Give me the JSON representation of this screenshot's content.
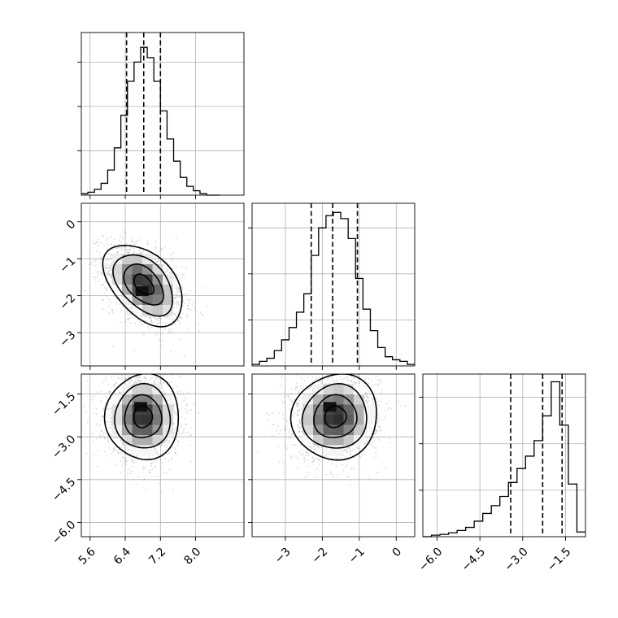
{
  "chart_data": {
    "type": "corner",
    "style": {
      "grid": true,
      "line_color": "#000000",
      "scatter_color": "#8c8c8c",
      "grid_color": "#b0b0b0"
    },
    "parameters": [
      {
        "range": [
          5.4,
          9.1
        ],
        "ticks": [
          5.6,
          6.4,
          7.2,
          8.0
        ],
        "tick_labels": [
          "5.6",
          "6.4",
          "7.2",
          "8.0"
        ],
        "quantiles": [
          6.43,
          6.82,
          7.2
        ],
        "hist": {
          "edges": [
            5.4,
            5.55,
            5.7,
            5.85,
            6.0,
            6.15,
            6.3,
            6.45,
            6.6,
            6.75,
            6.9,
            7.05,
            7.2,
            7.35,
            7.5,
            7.65,
            7.8,
            7.95,
            8.1,
            8.25,
            8.4,
            8.55
          ],
          "counts": [
            0.01,
            0.02,
            0.04,
            0.08,
            0.17,
            0.32,
            0.54,
            0.77,
            0.9,
            1.0,
            0.93,
            0.77,
            0.57,
            0.38,
            0.23,
            0.12,
            0.06,
            0.03,
            0.01,
            0.0,
            0.0
          ]
        },
        "hist_ticks": [
          0.3,
          0.6,
          0.9
        ],
        "hist_max": 1.1
      },
      {
        "range": [
          -3.9,
          0.5
        ],
        "ticks": [
          -3,
          -2,
          -1,
          0
        ],
        "tick_labels": [
          "−3",
          "−2",
          "−1",
          "0"
        ],
        "quantiles": [
          -2.3,
          -1.72,
          -1.05
        ],
        "hist": {
          "edges": [
            -3.9,
            -3.7,
            -3.5,
            -3.3,
            -3.1,
            -2.9,
            -2.7,
            -2.5,
            -2.3,
            -2.1,
            -1.9,
            -1.7,
            -1.5,
            -1.3,
            -1.1,
            -0.9,
            -0.7,
            -0.5,
            -0.3,
            -0.1,
            0.1,
            0.3,
            0.5
          ],
          "counts": [
            0.01,
            0.03,
            0.05,
            0.1,
            0.17,
            0.25,
            0.35,
            0.47,
            0.72,
            0.9,
            0.98,
            1.0,
            0.96,
            0.83,
            0.57,
            0.37,
            0.23,
            0.12,
            0.06,
            0.04,
            0.03,
            0.01
          ]
        },
        "hist_ticks": [
          0.3,
          0.6,
          0.9
        ],
        "hist_max": 1.06
      },
      {
        "range": [
          -6.5,
          -0.8
        ],
        "ticks": [
          -6.0,
          -4.5,
          -3.0,
          -1.5
        ],
        "tick_labels": [
          "−6.0",
          "−4.5",
          "−3.0",
          "−1.5"
        ],
        "quantiles": [
          -3.42,
          -2.3,
          -1.62
        ],
        "hist": {
          "edges": [
            -6.5,
            -6.2,
            -5.9,
            -5.6,
            -5.3,
            -5.0,
            -4.7,
            -4.4,
            -4.1,
            -3.8,
            -3.5,
            -3.2,
            -2.9,
            -2.6,
            -2.3,
            -2.0,
            -1.7,
            -1.4,
            -1.1,
            -0.8
          ],
          "counts": [
            0.0,
            0.01,
            0.015,
            0.025,
            0.04,
            0.06,
            0.1,
            0.15,
            0.2,
            0.26,
            0.35,
            0.44,
            0.52,
            0.62,
            0.78,
            1.0,
            0.72,
            0.34,
            0.03
          ]
        },
        "hist_ticks": [
          0.3,
          0.6,
          0.9
        ],
        "hist_max": 1.05
      }
    ],
    "pairs": [
      {
        "x": 0,
        "y": 1,
        "mean": [
          6.82,
          -1.7
        ],
        "std": [
          0.45,
          0.55
        ],
        "corr": -0.45,
        "peak": [
          6.78,
          -1.88
        ]
      },
      {
        "x": 0,
        "y": 2,
        "mean": [
          6.8,
          -2.3
        ],
        "std": [
          0.42,
          0.75
        ],
        "corr": 0.0,
        "peak": [
          6.75,
          -1.95
        ]
      },
      {
        "x": 1,
        "y": 2,
        "mean": [
          -1.65,
          -2.3
        ],
        "std": [
          0.58,
          0.75
        ],
        "corr": 0.05,
        "peak": [
          -1.8,
          -1.95
        ]
      }
    ],
    "contour_levels": [
      0.5,
      1.0,
      1.5,
      2.0
    ]
  }
}
